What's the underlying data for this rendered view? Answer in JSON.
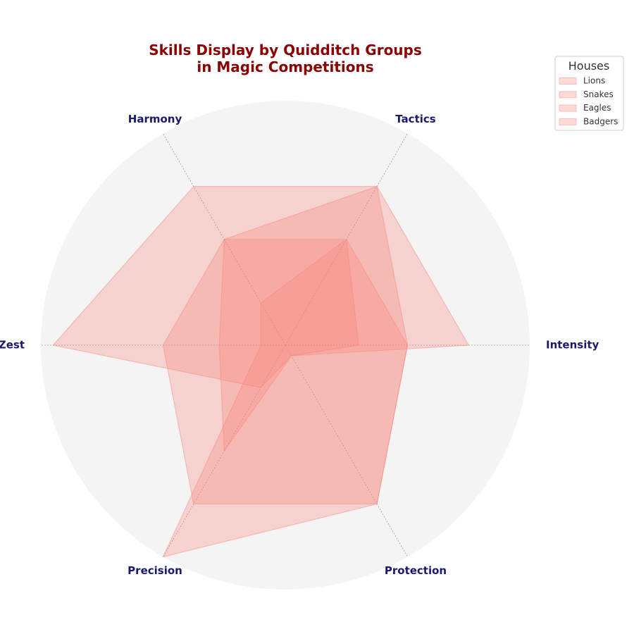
{
  "chart_data": {
    "type": "radar",
    "title_lines": [
      "Skills Display by Quidditch Groups",
      "in Magic Competitions"
    ],
    "axes": [
      "Intensity",
      "Tactics",
      "Harmony",
      "Zest",
      "Precision",
      "Protection"
    ],
    "rmax": 100,
    "legend": {
      "title": "Houses",
      "placement": "top-right"
    },
    "series": [
      {
        "name": "Lions",
        "values": [
          50,
          50,
          20,
          10,
          100,
          75
        ]
      },
      {
        "name": "Snakes",
        "values": [
          50,
          75,
          50,
          50,
          75,
          75
        ]
      },
      {
        "name": "Eagles",
        "values": [
          75,
          75,
          75,
          95,
          20,
          5
        ]
      },
      {
        "name": "Badgers",
        "values": [
          30,
          50,
          50,
          27,
          50,
          5
        ]
      }
    ],
    "colors": {
      "fill": "#f88379",
      "edge": "#f88379",
      "background": "#f4f4f4",
      "grid": "#9a9a9a",
      "title": "#8b0000",
      "axis_label": "#191970"
    }
  }
}
